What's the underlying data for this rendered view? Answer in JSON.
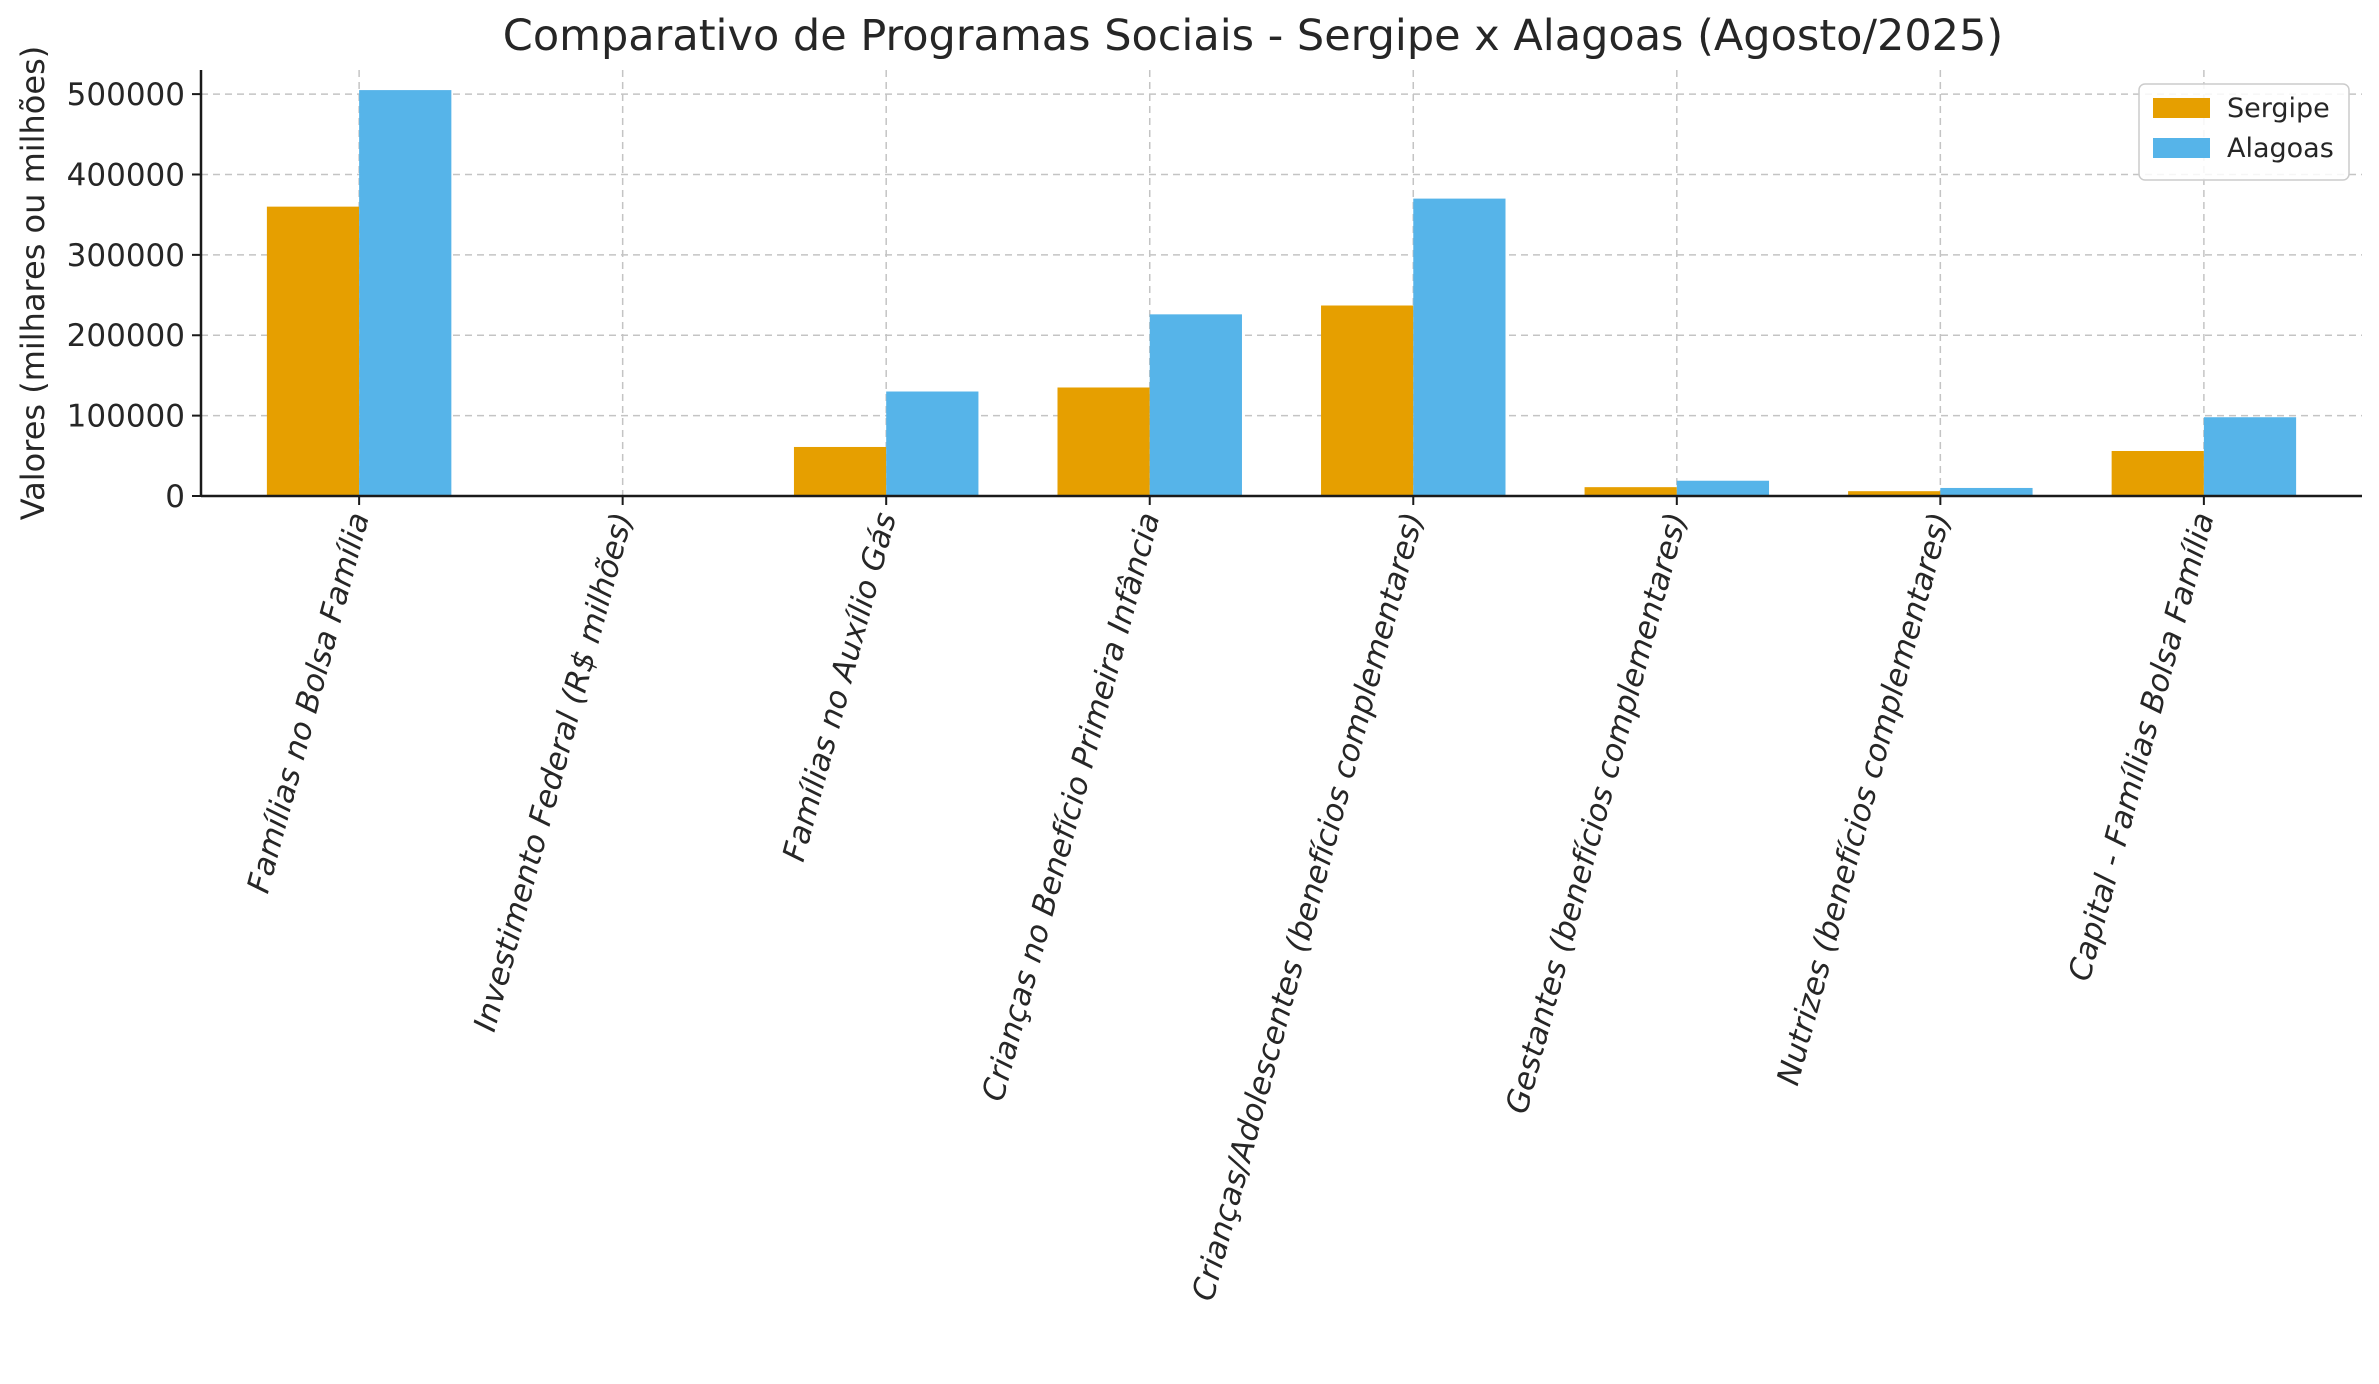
{
  "chart_data": {
    "type": "bar",
    "title": "Comparativo de Programas Sociais - Sergipe x Alagoas (Agosto/2025)",
    "xlabel": "",
    "ylabel": "Valores (milhares ou milhões)",
    "categories": [
      "Famílias no Bolsa Família",
      "Investimento Federal (R$ milhões)",
      "Famílias no Auxílio Gás",
      "Crianças no Benefício Primeira Infância",
      "Crianças/Adolescentes (benefícios complementares)",
      "Gestantes (benefícios complementares)",
      "Nutrizes (benefícios complementares)",
      "Capital - Famílias Bolsa Família"
    ],
    "series": [
      {
        "name": "Sergipe",
        "color": "#E69F00",
        "values": [
          360000,
          250,
          61000,
          135000,
          237000,
          11000,
          6000,
          56000
        ]
      },
      {
        "name": "Alagoas",
        "color": "#56B4E9",
        "values": [
          505000,
          350,
          130000,
          226000,
          370000,
          19000,
          10000,
          98000
        ]
      }
    ],
    "ylim": [
      0,
      530000
    ],
    "yticks": [
      0,
      100000,
      200000,
      300000,
      400000,
      500000
    ],
    "grid": true,
    "legend_position": "top-right"
  }
}
